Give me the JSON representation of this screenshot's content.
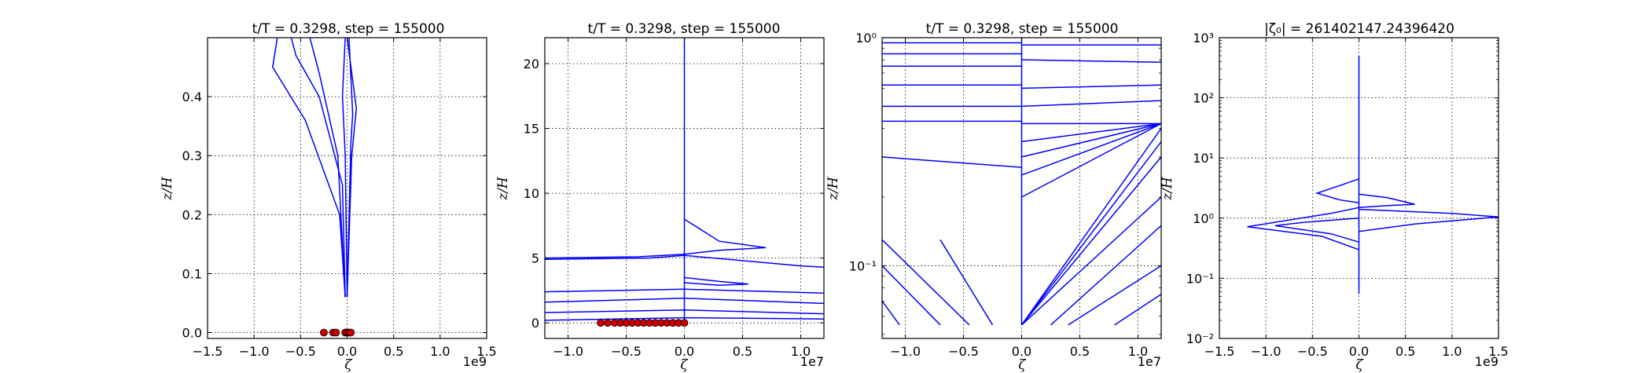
{
  "chart_data": [
    {
      "type": "line",
      "title": "t/T = 0.3298, step = 155000",
      "xlabel": "ζ",
      "ylabel": "z/H",
      "x_multiplier": "1e9",
      "xlim": [
        -1.5,
        1.5
      ],
      "ylim": [
        -0.01,
        0.5
      ],
      "yscale": "linear",
      "xticks": [
        "−1.5",
        "−1.0",
        "−0.5",
        "0.0",
        "0.5",
        "1.0",
        "1.5"
      ],
      "yticks": [
        "0.0",
        "0.1",
        "0.2",
        "0.3",
        "0.4"
      ],
      "grid": true,
      "series": [
        {
          "color": "#0000ff",
          "x": [
            -0.02,
            -0.08,
            -0.45,
            -0.8,
            -0.75
          ],
          "y": [
            0.06,
            0.2,
            0.36,
            0.45,
            0.5
          ]
        },
        {
          "color": "#0000ff",
          "x": [
            -0.02,
            -0.05,
            -0.3,
            -0.55,
            -0.6
          ],
          "y": [
            0.06,
            0.25,
            0.4,
            0.47,
            0.5
          ]
        },
        {
          "color": "#0000ff",
          "x": [
            -0.02,
            -0.1,
            -0.3,
            -0.4
          ],
          "y": [
            0.06,
            0.3,
            0.44,
            0.5
          ]
        },
        {
          "color": "#0000ff",
          "x": [
            0.0,
            0.05,
            0.1,
            0.0
          ],
          "y": [
            0.06,
            0.3,
            0.38,
            0.5
          ]
        },
        {
          "color": "#0000ff",
          "x": [
            0.0,
            0.04,
            0.06,
            0.02
          ],
          "y": [
            0.06,
            0.32,
            0.37,
            0.5
          ]
        },
        {
          "color": "#0000ff",
          "x": [
            0.0,
            -0.02,
            -0.05,
            -0.02
          ],
          "y": [
            0.06,
            0.3,
            0.4,
            0.5
          ]
        }
      ],
      "markers": {
        "color": "#cc0000",
        "x": [
          -0.25,
          -0.15,
          -0.12,
          -0.02,
          0.0,
          0.02,
          0.04
        ],
        "y": [
          0.0,
          0.0,
          0.0,
          0.0,
          0.0,
          0.0,
          0.0
        ]
      }
    },
    {
      "type": "line",
      "title": "t/T = 0.3298, step = 155000",
      "xlabel": "ζ",
      "ylabel": "z/H",
      "x_multiplier": "1e7",
      "xlim": [
        -1.2,
        1.2
      ],
      "ylim": [
        -1.2,
        22
      ],
      "yscale": "linear",
      "xticks": [
        "−1.0",
        "−0.5",
        "0.0",
        "0.5",
        "1.0"
      ],
      "yticks": [
        "0",
        "5",
        "10",
        "15",
        "20"
      ],
      "grid": true,
      "series": [
        {
          "color": "#0000ff",
          "x": [
            0.0,
            0.0,
            0.0
          ],
          "y": [
            0.0,
            5.2,
            22
          ]
        },
        {
          "color": "#0000ff",
          "x": [
            -1.2,
            -0.4,
            0.0,
            0.3,
            0.7,
            0.3,
            0.0
          ],
          "y": [
            5.0,
            5.1,
            5.3,
            5.6,
            5.8,
            6.3,
            8.0
          ]
        },
        {
          "color": "#0000ff",
          "x": [
            -1.2,
            -0.3,
            0.0,
            0.5,
            1.0,
            1.2
          ],
          "y": [
            4.9,
            5.0,
            5.2,
            4.8,
            4.4,
            4.3
          ]
        },
        {
          "color": "#0000ff",
          "x": [
            0.0,
            0.3,
            0.55,
            0.3,
            0.0
          ],
          "y": [
            3.5,
            3.2,
            3.0,
            2.9,
            3.1
          ]
        },
        {
          "color": "#0000ff",
          "x": [
            -1.2,
            0.0,
            1.2
          ],
          "y": [
            2.4,
            2.6,
            2.3
          ]
        },
        {
          "color": "#0000ff",
          "x": [
            -1.2,
            0.0,
            1.2
          ],
          "y": [
            1.6,
            1.9,
            1.5
          ]
        },
        {
          "color": "#0000ff",
          "x": [
            -1.2,
            0.0,
            1.2
          ],
          "y": [
            0.8,
            1.0,
            0.7
          ]
        },
        {
          "color": "#0000ff",
          "x": [
            -1.2,
            0.0,
            1.2
          ],
          "y": [
            0.2,
            0.4,
            0.3
          ]
        }
      ],
      "markers": {
        "color": "#cc0000",
        "x": [
          -0.72,
          -0.66,
          -0.6,
          -0.55,
          -0.5,
          -0.45,
          -0.4,
          -0.35,
          -0.3,
          -0.25,
          -0.2,
          -0.15,
          -0.1,
          -0.05,
          0.0
        ],
        "y": [
          0,
          0,
          0,
          0,
          0,
          0,
          0,
          0,
          0,
          0,
          0,
          0,
          0,
          0,
          0
        ]
      }
    },
    {
      "type": "line",
      "title": "t/T = 0.3298, step = 155000",
      "xlabel": "ζ",
      "ylabel": "z/H",
      "x_multiplier": "1e7",
      "xlim": [
        -1.2,
        1.2
      ],
      "ylim": [
        0.048,
        1.0
      ],
      "yscale": "log",
      "xticks": [
        "−1.0",
        "−0.5",
        "0.0",
        "0.5",
        "1.0"
      ],
      "yticks": [
        "10⁻¹",
        "10⁰"
      ],
      "grid": true,
      "series": [
        {
          "color": "#0000ff",
          "x": [
            -1.2,
            0.0
          ],
          "y": [
            0.95,
            0.95
          ]
        },
        {
          "color": "#0000ff",
          "x": [
            -1.2,
            0.0
          ],
          "y": [
            0.85,
            0.85
          ]
        },
        {
          "color": "#0000ff",
          "x": [
            -1.2,
            0.0
          ],
          "y": [
            0.75,
            0.75
          ]
        },
        {
          "color": "#0000ff",
          "x": [
            -1.2,
            0.0
          ],
          "y": [
            0.62,
            0.62
          ]
        },
        {
          "color": "#0000ff",
          "x": [
            -1.2,
            0.0
          ],
          "y": [
            0.5,
            0.5
          ]
        },
        {
          "color": "#0000ff",
          "x": [
            -1.2,
            0.0
          ],
          "y": [
            0.43,
            0.43
          ]
        },
        {
          "color": "#0000ff",
          "x": [
            -1.2,
            0.0
          ],
          "y": [
            0.3,
            0.27
          ]
        },
        {
          "color": "#0000ff",
          "x": [
            0.0,
            1.2
          ],
          "y": [
            0.42,
            0.42
          ]
        },
        {
          "color": "#0000ff",
          "x": [
            0.0,
            1.2
          ],
          "y": [
            0.2,
            0.42
          ]
        },
        {
          "color": "#0000ff",
          "x": [
            0.0,
            1.2
          ],
          "y": [
            0.25,
            0.42
          ]
        },
        {
          "color": "#0000ff",
          "x": [
            0.0,
            1.2
          ],
          "y": [
            0.3,
            0.42
          ]
        },
        {
          "color": "#0000ff",
          "x": [
            0.0,
            1.2
          ],
          "y": [
            0.35,
            0.42
          ]
        },
        {
          "color": "#0000ff",
          "x": [
            0.0,
            1.2
          ],
          "y": [
            0.055,
            0.4
          ]
        },
        {
          "color": "#0000ff",
          "x": [
            0.0,
            1.2
          ],
          "y": [
            0.055,
            0.35
          ]
        },
        {
          "color": "#0000ff",
          "x": [
            0.0,
            1.2
          ],
          "y": [
            0.055,
            0.3
          ]
        },
        {
          "color": "#0000ff",
          "x": [
            0.0,
            1.2
          ],
          "y": [
            0.055,
            0.2
          ]
        },
        {
          "color": "#0000ff",
          "x": [
            0.0,
            0.0
          ],
          "y": [
            0.055,
            1.0
          ]
        },
        {
          "color": "#0000ff",
          "x": [
            0.0,
            1.2
          ],
          "y": [
            0.93,
            0.93
          ]
        },
        {
          "color": "#0000ff",
          "x": [
            0.0,
            1.2
          ],
          "y": [
            0.8,
            0.78
          ]
        },
        {
          "color": "#0000ff",
          "x": [
            0.0,
            1.2
          ],
          "y": [
            0.6,
            0.62
          ]
        },
        {
          "color": "#0000ff",
          "x": [
            0.0,
            1.2
          ],
          "y": [
            0.5,
            0.53
          ]
        },
        {
          "color": "#0000ff",
          "x": [
            -1.2,
            -0.45
          ],
          "y": [
            0.13,
            0.055
          ]
        },
        {
          "color": "#0000ff",
          "x": [
            -1.2,
            -0.7
          ],
          "y": [
            0.1,
            0.055
          ]
        },
        {
          "color": "#0000ff",
          "x": [
            -1.2,
            -1.05
          ],
          "y": [
            0.07,
            0.055
          ]
        },
        {
          "color": "#0000ff",
          "x": [
            -0.7,
            -0.25
          ],
          "y": [
            0.13,
            0.055
          ]
        },
        {
          "color": "#0000ff",
          "x": [
            0.25,
            1.2
          ],
          "y": [
            0.055,
            0.15
          ]
        },
        {
          "color": "#0000ff",
          "x": [
            0.4,
            1.2
          ],
          "y": [
            0.055,
            0.1
          ]
        },
        {
          "color": "#0000ff",
          "x": [
            0.8,
            1.2
          ],
          "y": [
            0.055,
            0.075
          ]
        }
      ]
    },
    {
      "type": "line",
      "title": "|ζ₀| = 261402147.24396420",
      "xlabel": "ζ",
      "ylabel": "z/H",
      "x_multiplier": "1e9",
      "xlim": [
        -1.5,
        1.5
      ],
      "ylim": [
        0.01,
        1000
      ],
      "yscale": "log",
      "xticks": [
        "−1.5",
        "−1.0",
        "−0.5",
        "0.0",
        "0.5",
        "1.0",
        "1.5"
      ],
      "yticks": [
        "10⁻²",
        "10⁻¹",
        "10⁰",
        "10¹",
        "10²",
        "10³"
      ],
      "grid": true,
      "series": [
        {
          "color": "#0000ff",
          "x": [
            0.0,
            0.0,
            0.0
          ],
          "y": [
            0.055,
            1.0,
            500
          ]
        },
        {
          "color": "#0000ff",
          "x": [
            0.0,
            -0.2,
            -0.45,
            -0.2,
            0.0
          ],
          "y": [
            4.5,
            3.5,
            2.6,
            2.0,
            1.8
          ]
        },
        {
          "color": "#0000ff",
          "x": [
            0.0,
            -0.3,
            -1.2,
            -0.4,
            0.0
          ],
          "y": [
            1.5,
            1.2,
            0.72,
            0.5,
            0.3
          ]
        },
        {
          "color": "#0000ff",
          "x": [
            0.0,
            0.5,
            1.0,
            1.5,
            0.6,
            0.0
          ],
          "y": [
            1.4,
            1.3,
            1.2,
            1.05,
            0.8,
            0.6
          ]
        },
        {
          "color": "#0000ff",
          "x": [
            0.0,
            0.3,
            0.6,
            0.25,
            0.0
          ],
          "y": [
            2.5,
            2.2,
            1.7,
            1.6,
            1.5
          ]
        },
        {
          "color": "#0000ff",
          "x": [
            0.0,
            -0.6,
            -0.9,
            -0.3,
            0.0
          ],
          "y": [
            1.0,
            0.85,
            0.75,
            0.55,
            0.4
          ]
        }
      ]
    }
  ]
}
